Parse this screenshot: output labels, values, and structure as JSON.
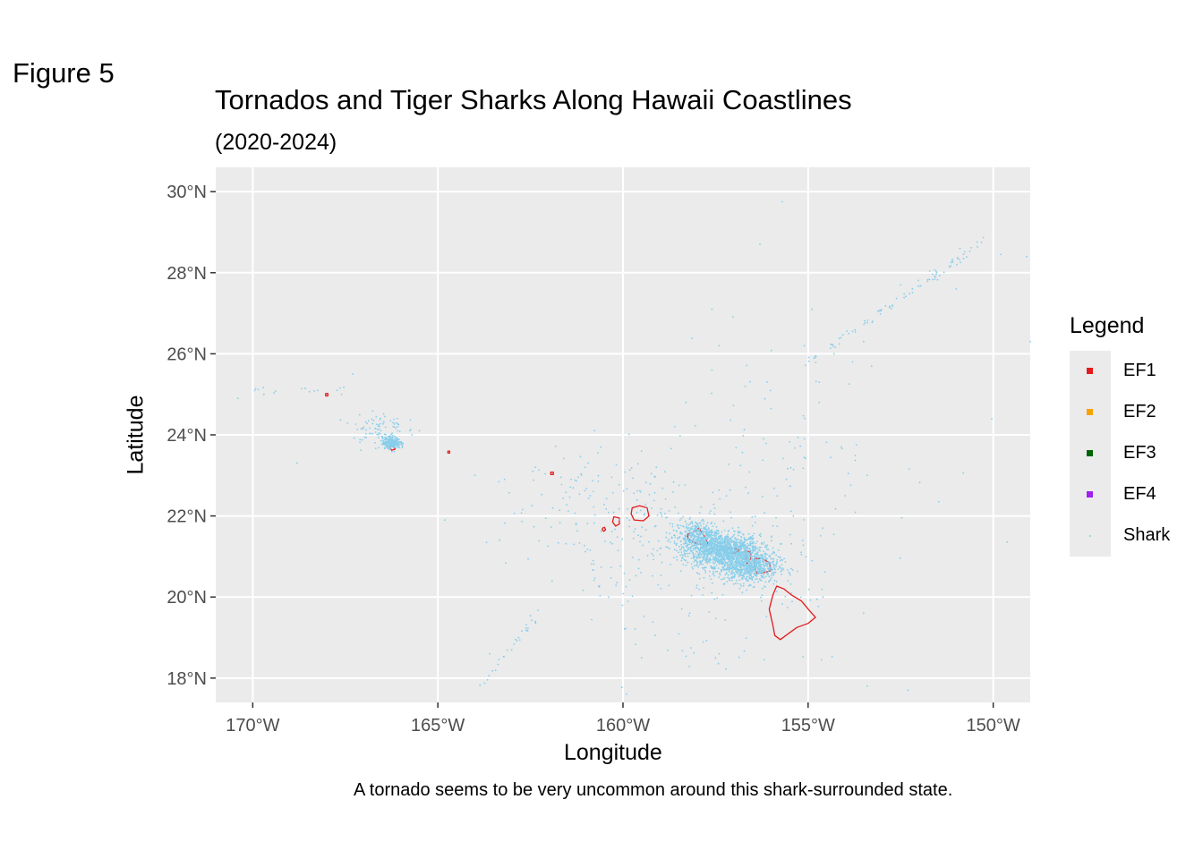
{
  "figure_label": "Figure 5",
  "chart_data": {
    "type": "scatter",
    "title": "Tornados and Tiger Sharks Along Hawaii Coastlines",
    "subtitle": "(2020-2024)",
    "xlabel": "Longitude",
    "ylabel": "Latitude",
    "caption": "A tornado seems to be very uncommon around this shark-surrounded state.",
    "xlim": [
      -171,
      -149
    ],
    "ylim": [
      17.4,
      30.6
    ],
    "x_ticks": [
      {
        "value": -170,
        "label": "170°W"
      },
      {
        "value": -165,
        "label": "165°W"
      },
      {
        "value": -160,
        "label": "160°W"
      },
      {
        "value": -155,
        "label": "155°W"
      },
      {
        "value": -150,
        "label": "150°W"
      }
    ],
    "y_ticks": [
      {
        "value": 18,
        "label": "18°N"
      },
      {
        "value": 20,
        "label": "20°N"
      },
      {
        "value": 22,
        "label": "22°N"
      },
      {
        "value": 24,
        "label": "24°N"
      },
      {
        "value": 26,
        "label": "26°N"
      },
      {
        "value": 28,
        "label": "28°N"
      },
      {
        "value": 30,
        "label": "30°N"
      }
    ],
    "grid": true,
    "legend_position": "right",
    "legend": {
      "title": "Legend",
      "entries": [
        {
          "label": "EF1",
          "color": "#e41a1c",
          "shape": "square"
        },
        {
          "label": "EF2",
          "color": "#f5a300",
          "shape": "square"
        },
        {
          "label": "EF3",
          "color": "#006400",
          "shape": "square"
        },
        {
          "label": "EF4",
          "color": "#a020f0",
          "shape": "square"
        },
        {
          "label": "Shark",
          "color": "#87ceeb",
          "shape": "dot"
        }
      ]
    },
    "series": [
      {
        "name": "EF1",
        "color": "#e41a1c",
        "kind": "outline",
        "features": [
          {
            "points": [
              [
                -155.85,
                20.27
              ],
              [
                -155.65,
                20.2
              ],
              [
                -155.45,
                20.05
              ],
              [
                -155.18,
                19.9
              ],
              [
                -154.95,
                19.65
              ],
              [
                -154.8,
                19.5
              ],
              [
                -155.0,
                19.35
              ],
              [
                -155.3,
                19.25
              ],
              [
                -155.6,
                19.05
              ],
              [
                -155.75,
                18.95
              ],
              [
                -155.9,
                19.05
              ],
              [
                -155.95,
                19.3
              ],
              [
                -156.05,
                19.7
              ],
              [
                -155.95,
                20.05
              ]
            ]
          },
          {
            "points": [
              [
                -156.45,
                20.95
              ],
              [
                -156.25,
                20.95
              ],
              [
                -156.05,
                20.85
              ],
              [
                -156.0,
                20.65
              ],
              [
                -156.2,
                20.6
              ],
              [
                -156.38,
                20.58
              ],
              [
                -156.45,
                20.75
              ]
            ]
          },
          {
            "points": [
              [
                -156.7,
                21.15
              ],
              [
                -156.55,
                21.1
              ],
              [
                -156.55,
                20.95
              ],
              [
                -156.65,
                20.82
              ],
              [
                -156.68,
                21.0
              ]
            ]
          },
          {
            "points": [
              [
                -157.3,
                21.2
              ],
              [
                -157.0,
                21.2
              ],
              [
                -156.85,
                21.15
              ],
              [
                -157.0,
                21.08
              ],
              [
                -157.25,
                21.1
              ]
            ]
          },
          {
            "points": [
              [
                -158.25,
                21.55
              ],
              [
                -158.1,
                21.6
              ],
              [
                -157.95,
                21.7
              ],
              [
                -157.8,
                21.5
              ],
              [
                -157.7,
                21.3
              ],
              [
                -157.95,
                21.3
              ],
              [
                -158.1,
                21.35
              ],
              [
                -158.25,
                21.45
              ]
            ]
          },
          {
            "points": [
              [
                -159.75,
                22.2
              ],
              [
                -159.55,
                22.25
              ],
              [
                -159.35,
                22.2
              ],
              [
                -159.3,
                22.0
              ],
              [
                -159.45,
                21.88
              ],
              [
                -159.7,
                21.9
              ],
              [
                -159.78,
                22.05
              ]
            ]
          },
          {
            "points": [
              [
                -160.25,
                21.98
              ],
              [
                -160.1,
                21.95
              ],
              [
                -160.1,
                21.8
              ],
              [
                -160.2,
                21.75
              ],
              [
                -160.28,
                21.85
              ]
            ]
          },
          {
            "points": [
              [
                -160.55,
                21.7
              ],
              [
                -160.5,
                21.72
              ],
              [
                -160.47,
                21.66
              ],
              [
                -160.52,
                21.62
              ],
              [
                -160.56,
                21.66
              ]
            ]
          },
          {
            "points": [
              [
                -161.95,
                23.08
              ],
              [
                -161.88,
                23.08
              ],
              [
                -161.88,
                23.02
              ],
              [
                -161.95,
                23.02
              ]
            ]
          },
          {
            "points": [
              [
                -164.73,
                23.6
              ],
              [
                -164.68,
                23.6
              ],
              [
                -164.68,
                23.55
              ],
              [
                -164.73,
                23.55
              ]
            ]
          },
          {
            "points": [
              [
                -166.3,
                23.7
              ],
              [
                -166.2,
                23.72
              ],
              [
                -166.15,
                23.65
              ],
              [
                -166.25,
                23.62
              ]
            ]
          },
          {
            "points": [
              [
                -168.03,
                25.02
              ],
              [
                -167.97,
                25.02
              ],
              [
                -167.97,
                24.96
              ],
              [
                -168.03,
                24.96
              ]
            ]
          }
        ]
      },
      {
        "name": "EF2",
        "color": "#f5a300",
        "features": []
      },
      {
        "name": "EF3",
        "color": "#006400",
        "features": []
      },
      {
        "name": "EF4",
        "color": "#a020f0",
        "features": []
      },
      {
        "name": "Shark",
        "color": "#87ceeb",
        "kind": "points",
        "clusters": [
          {
            "x": -157.3,
            "y": 21.15,
            "sx": 0.5,
            "sy": 0.2,
            "n": 1200
          },
          {
            "x": -156.6,
            "y": 20.75,
            "sx": 0.4,
            "sy": 0.2,
            "n": 700
          },
          {
            "x": -158.0,
            "y": 21.5,
            "sx": 0.3,
            "sy": 0.2,
            "n": 400
          },
          {
            "x": -166.25,
            "y": 23.8,
            "sx": 0.12,
            "sy": 0.07,
            "n": 260
          },
          {
            "x": -166.6,
            "y": 24.15,
            "sx": 0.35,
            "sy": 0.25,
            "n": 90
          },
          {
            "x": -158.2,
            "y": 21.1,
            "sx": 1.3,
            "sy": 0.8,
            "n": 160
          },
          {
            "x": -155.9,
            "y": 20.5,
            "sx": 0.8,
            "sy": 0.6,
            "n": 60
          },
          {
            "x": -160.3,
            "y": 22.3,
            "sx": 1.2,
            "sy": 0.7,
            "n": 90
          },
          {
            "x": -156.0,
            "y": 23.6,
            "sx": 2.0,
            "sy": 1.3,
            "n": 90
          },
          {
            "x": -162.3,
            "y": 22.0,
            "sx": 0.9,
            "sy": 0.6,
            "n": 25
          },
          {
            "x": -157.3,
            "y": 18.8,
            "sx": 1.3,
            "sy": 0.6,
            "n": 25
          },
          {
            "x": -161.0,
            "y": 20.5,
            "sx": 0.9,
            "sy": 0.9,
            "n": 14
          }
        ],
        "tracks": [
          {
            "from": [
              -155.0,
              25.8
            ],
            "to": [
              -150.2,
              28.8
            ],
            "n": 90
          },
          {
            "from": [
              -163.9,
              17.8
            ],
            "to": [
              -162.3,
              19.5
            ],
            "n": 28
          },
          {
            "from": [
              -170.0,
              25.1
            ],
            "to": [
              -167.5,
              25.1
            ],
            "n": 14
          },
          {
            "from": [
              -161.0,
              21.3
            ],
            "to": [
              -160.6,
              20.0
            ],
            "n": 10
          }
        ],
        "points": [
          [
            -155.7,
            29.75
          ],
          [
            -156.3,
            28.7
          ],
          [
            -154.9,
            27.1
          ],
          [
            -153.5,
            26.3
          ],
          [
            -154.3,
            26.0
          ],
          [
            -154.7,
            24.8
          ],
          [
            -154.7,
            25.3
          ],
          [
            -153.8,
            25.8
          ],
          [
            -152.5,
            27.7
          ],
          [
            -151.0,
            27.6
          ],
          [
            -150.9,
            28.6
          ],
          [
            -149.8,
            28.45
          ],
          [
            -149.1,
            28.4
          ],
          [
            -149.0,
            26.3
          ],
          [
            -157.6,
            25.6
          ],
          [
            -157.4,
            26.2
          ],
          [
            -157.6,
            27.1
          ],
          [
            -156.7,
            25.2
          ],
          [
            -158.6,
            24.2
          ],
          [
            -158.3,
            24.8
          ],
          [
            -159.1,
            23.2
          ],
          [
            -159.5,
            23.6
          ],
          [
            -160.8,
            22.6
          ],
          [
            -160.6,
            23.7
          ],
          [
            -161.4,
            22.9
          ],
          [
            -156.2,
            23.9
          ],
          [
            -155.1,
            23.9
          ],
          [
            -154.1,
            23.7
          ],
          [
            -153.4,
            23.0
          ],
          [
            -154.0,
            22.5
          ],
          [
            -155.4,
            22.0
          ],
          [
            -157.6,
            20.1
          ],
          [
            -158.2,
            19.6
          ],
          [
            -157.5,
            18.5
          ],
          [
            -159.5,
            18.5
          ],
          [
            -159.9,
            17.6
          ],
          [
            -153.5,
            19.6
          ],
          [
            -152.3,
            17.7
          ],
          [
            -154.6,
            20.0
          ],
          [
            -153.4,
            17.8
          ],
          [
            -163.2,
            22.9
          ],
          [
            -164.0,
            23.0
          ],
          [
            -169.7,
            25.0
          ],
          [
            -170.4,
            24.9
          ],
          [
            -168.8,
            23.3
          ],
          [
            -167.3,
            25.5
          ],
          [
            -165.5,
            24.1
          ],
          [
            -167.6,
            25.0
          ],
          [
            -163.6,
            18.6
          ]
        ]
      }
    ]
  }
}
